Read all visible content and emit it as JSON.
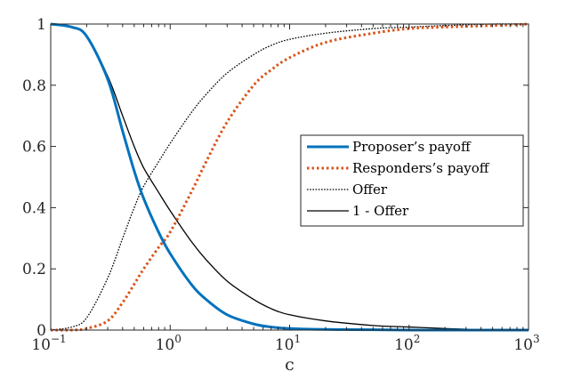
{
  "chart_data": {
    "type": "line",
    "title": "",
    "xlabel": "c",
    "ylabel": "",
    "x_scale": "log",
    "xlim": [
      0.1,
      1000
    ],
    "ylim": [
      0,
      1
    ],
    "x_ticks": [
      {
        "value": 0.1,
        "base": "10",
        "exp": "−1"
      },
      {
        "value": 1,
        "base": "10",
        "exp": "0"
      },
      {
        "value": 10,
        "base": "10",
        "exp": "1"
      },
      {
        "value": 100,
        "base": "10",
        "exp": "2"
      },
      {
        "value": 1000,
        "base": "10",
        "exp": "3"
      }
    ],
    "y_ticks": [
      {
        "value": 0,
        "label": "0"
      },
      {
        "value": 0.2,
        "label": "0.2"
      },
      {
        "value": 0.4,
        "label": "0.4"
      },
      {
        "value": 0.6,
        "label": "0.6"
      },
      {
        "value": 0.8,
        "label": "0.8"
      },
      {
        "value": 1,
        "label": "1"
      }
    ],
    "grid": false,
    "legend_position": "right",
    "x": [
      0.1,
      0.15,
      0.2,
      0.3,
      0.4,
      0.5,
      0.6,
      0.8,
      1,
      1.5,
      2,
      3,
      5,
      7,
      10,
      20,
      50,
      100,
      200,
      500,
      1000
    ],
    "series": [
      {
        "name": "Proposer’s payoff",
        "color": "#0072BD",
        "style": "solid-thick",
        "values": [
          1.0,
          0.99,
          0.96,
          0.82,
          0.65,
          0.52,
          0.43,
          0.32,
          0.25,
          0.15,
          0.1,
          0.05,
          0.02,
          0.01,
          0.005,
          0.002,
          0.001,
          0.0,
          0.0,
          0.0,
          0.0
        ]
      },
      {
        "name": "Responders’s payoff",
        "color": "#D95319",
        "style": "dotted-thick",
        "values": [
          0.0,
          0.0,
          0.005,
          0.03,
          0.09,
          0.15,
          0.2,
          0.27,
          0.32,
          0.45,
          0.55,
          0.68,
          0.8,
          0.85,
          0.89,
          0.94,
          0.97,
          0.985,
          0.99,
          0.995,
          1.0
        ]
      },
      {
        "name": "Offer",
        "color": "#000000",
        "style": "dotted",
        "values": [
          0.0,
          0.01,
          0.04,
          0.17,
          0.3,
          0.4,
          0.47,
          0.55,
          0.61,
          0.71,
          0.77,
          0.84,
          0.9,
          0.93,
          0.95,
          0.97,
          0.985,
          0.99,
          0.995,
          1.0,
          1.0
        ]
      },
      {
        "name": "1 - Offer",
        "color": "#000000",
        "style": "solid",
        "values": [
          1.0,
          0.99,
          0.96,
          0.83,
          0.7,
          0.6,
          0.53,
          0.45,
          0.39,
          0.29,
          0.23,
          0.16,
          0.1,
          0.07,
          0.05,
          0.03,
          0.015,
          0.01,
          0.005,
          0.0,
          0.0
        ]
      }
    ]
  }
}
